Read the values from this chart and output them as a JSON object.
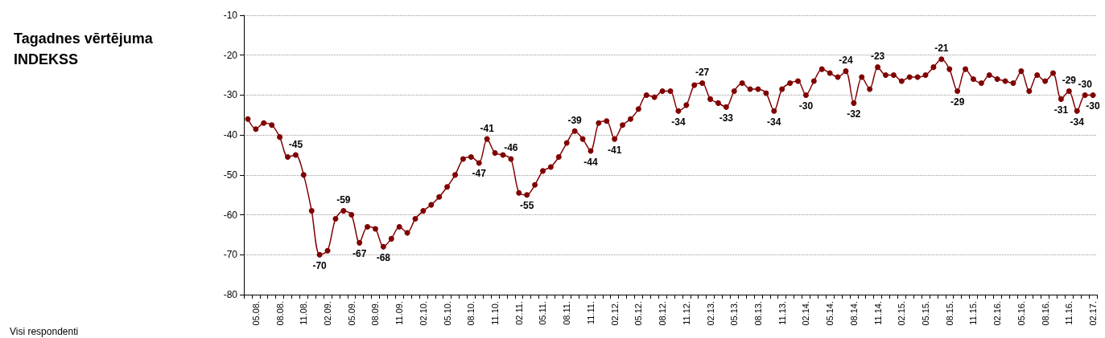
{
  "chart_data": {
    "type": "line",
    "title": "Tagadnes vērtējuma INDEKSS",
    "annotations": [
      "Visi respondenti"
    ],
    "categories": [
      null,
      "05.08.",
      null,
      null,
      "08.08.",
      null,
      null,
      "11.08.",
      null,
      null,
      "02.09.",
      null,
      null,
      "05.09.",
      null,
      null,
      "08.09.",
      null,
      null,
      "11.09.",
      null,
      null,
      "02.10.",
      null,
      null,
      "05.10.",
      null,
      null,
      "08.10.",
      null,
      null,
      "11.10.",
      null,
      null,
      "02.11.",
      null,
      null,
      "05.11.",
      null,
      null,
      "08.11.",
      null,
      null,
      "11.11.",
      null,
      null,
      "02.12.",
      null,
      null,
      "05.12.",
      null,
      null,
      "08.12.",
      null,
      null,
      "11.12.",
      null,
      null,
      "02.13.",
      null,
      null,
      "05.13.",
      null,
      null,
      "08.13.",
      null,
      null,
      "11.13.",
      null,
      null,
      "02.14.",
      null,
      null,
      "05.14.",
      null,
      null,
      "08.14.",
      null,
      null,
      "11.14.",
      null,
      null,
      "02.15.",
      null,
      null,
      "05.15.",
      null,
      null,
      "08.15.",
      null,
      null,
      "11.15.",
      null,
      null,
      "02.16.",
      null,
      null,
      "05.16.",
      null,
      null,
      "08.16.",
      null,
      null,
      "11.16.",
      null,
      null,
      "02.17."
    ],
    "values": [
      -36,
      -38.5,
      -37,
      -37.5,
      -40.5,
      -45.5,
      -45,
      -50,
      -59,
      -70,
      -69,
      -61,
      -59,
      -60,
      -67,
      -63,
      -63.5,
      -68,
      -66,
      -63,
      -64.5,
      -61,
      -59,
      -57.5,
      -55.5,
      -53,
      -50,
      -46,
      -45.5,
      -47,
      -41,
      -44.5,
      -45,
      -46,
      -54.5,
      -55,
      -52.5,
      -49,
      -48,
      -45.5,
      -42,
      -39,
      -41,
      -44,
      -37,
      -36.5,
      -41,
      -37.5,
      -36,
      -33.5,
      -30,
      -30.5,
      -29,
      -29,
      -34,
      -32.5,
      -27.5,
      -27,
      -31,
      -32,
      -33,
      -29,
      -27,
      -28.5,
      -28.5,
      -29.5,
      -34,
      -28.5,
      -27,
      -26.5,
      -30,
      -26.5,
      -23.5,
      -24.5,
      -25.5,
      -24,
      -32,
      -25.5,
      -28.5,
      -23,
      -25,
      -25,
      -26.5,
      -25.5,
      -25.5,
      -25,
      -23,
      -21,
      -23.5,
      -29,
      -23.5,
      -26,
      -27,
      -25,
      -26,
      -26.5,
      -27,
      -24,
      -29,
      -25,
      -26.5,
      -24.5,
      -31,
      -29,
      -34,
      -30,
      -30
    ],
    "value_labels": [
      null,
      null,
      null,
      null,
      null,
      null,
      "-45",
      null,
      null,
      "-70",
      null,
      null,
      "-59",
      null,
      "-67",
      null,
      null,
      "-68",
      null,
      null,
      null,
      null,
      null,
      null,
      null,
      null,
      null,
      null,
      null,
      "-47",
      "-41",
      null,
      null,
      "-46",
      null,
      "-55",
      null,
      null,
      null,
      null,
      null,
      "-39",
      null,
      "-44",
      null,
      null,
      "-41",
      null,
      null,
      null,
      null,
      null,
      null,
      null,
      "-34",
      null,
      null,
      "-27",
      null,
      null,
      "-33",
      null,
      null,
      null,
      null,
      null,
      "-34",
      null,
      null,
      null,
      "-30",
      null,
      null,
      null,
      null,
      "-24",
      "-32",
      null,
      null,
      "-23",
      null,
      null,
      null,
      null,
      null,
      null,
      null,
      "-21",
      null,
      "-29",
      null,
      null,
      null,
      null,
      null,
      null,
      null,
      null,
      null,
      null,
      null,
      null,
      "-31",
      "-29",
      "-34",
      "-30",
      "-30"
    ],
    "color": "#800000",
    "ylim": [
      -80,
      -10
    ],
    "yticks": [
      -80,
      -70,
      -60,
      -50,
      -40,
      -30,
      -20,
      -10
    ],
    "grid": "y",
    "marker": "circle",
    "line_style": "solid"
  }
}
